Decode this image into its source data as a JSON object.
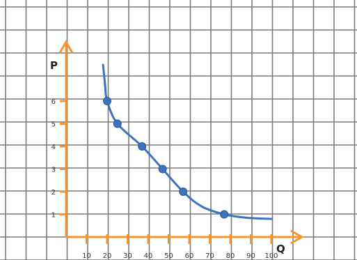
{
  "chart_data": {
    "type": "line",
    "title": "",
    "xlabel": "Q",
    "ylabel": "P",
    "x_ticks": [
      10,
      20,
      30,
      40,
      50,
      60,
      70,
      80,
      90,
      100
    ],
    "y_ticks": [
      1,
      2,
      3,
      4,
      5,
      6
    ],
    "xlim": [
      0,
      110
    ],
    "ylim": [
      0,
      8
    ],
    "grid": true,
    "legend": "none",
    "series": [
      {
        "points": [
          {
            "x": 20,
            "y": 6
          },
          {
            "x": 25,
            "y": 5
          },
          {
            "x": 37,
            "y": 4
          },
          {
            "x": 47,
            "y": 3
          },
          {
            "x": 57,
            "y": 2
          },
          {
            "x": 77,
            "y": 1
          }
        ],
        "curve": [
          {
            "x": 18,
            "y": 7.6
          },
          {
            "x": 19,
            "y": 6.7
          },
          {
            "x": 20,
            "y": 6
          },
          {
            "x": 25,
            "y": 5
          },
          {
            "x": 37,
            "y": 4
          },
          {
            "x": 47,
            "y": 3
          },
          {
            "x": 57,
            "y": 2
          },
          {
            "x": 66,
            "y": 1.35
          },
          {
            "x": 77,
            "y": 1
          },
          {
            "x": 88,
            "y": 0.85
          },
          {
            "x": 100,
            "y": 0.8
          }
        ]
      }
    ],
    "colors": {
      "axis": "#f39530",
      "curve": "#3b73bd",
      "point": "#3b73bd",
      "grid": "#7a7a7a"
    }
  }
}
